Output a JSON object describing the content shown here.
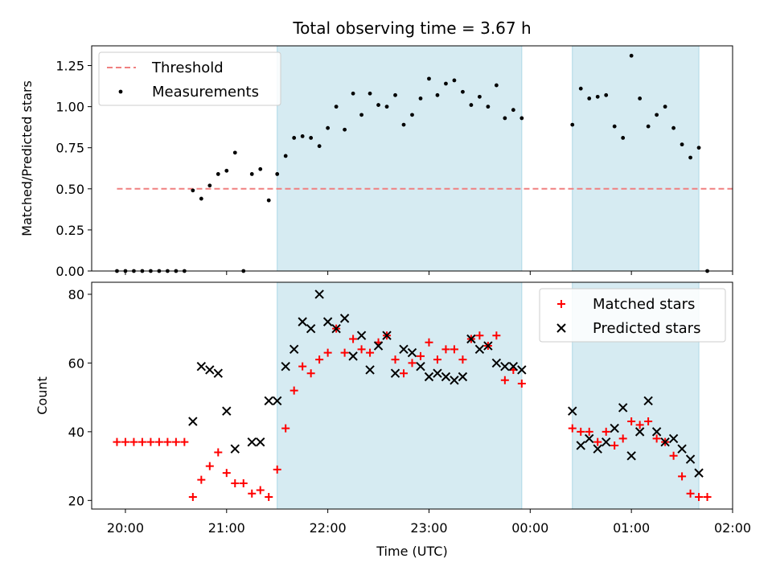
{
  "chart_data": [
    {
      "type": "scatter",
      "title": "Total observing time = 3.67 h",
      "xlabel": "",
      "ylabel": "Matched/Predicted stars",
      "xlim": [
        "19:40",
        "02:00"
      ],
      "ylim": [
        0,
        1.37
      ],
      "y_ticks": [
        "0.00",
        "0.25",
        "0.50",
        "0.75",
        "1.00",
        "1.25"
      ],
      "shaded_intervals": [
        [
          "21:30",
          "23:55"
        ],
        [
          "00:25",
          "01:40"
        ]
      ],
      "threshold": {
        "name": "Threshold",
        "y": 0.5,
        "x_range": [
          "19:55",
          "02:00"
        ],
        "color": "#f08080"
      },
      "legend": {
        "position": "top-left",
        "entries": [
          "Threshold",
          "Measurements"
        ]
      },
      "series": [
        {
          "name": "Measurements",
          "color": "#000000",
          "marker": "dot",
          "points": [
            [
              "19:55",
              0.0
            ],
            [
              "20:00",
              0.0
            ],
            [
              "20:05",
              0.0
            ],
            [
              "20:10",
              0.0
            ],
            [
              "20:15",
              0.0
            ],
            [
              "20:20",
              0.0
            ],
            [
              "20:25",
              0.0
            ],
            [
              "20:30",
              0.0
            ],
            [
              "20:35",
              0.0
            ],
            [
              "20:40",
              0.49
            ],
            [
              "20:45",
              0.44
            ],
            [
              "20:50",
              0.52
            ],
            [
              "20:55",
              0.59
            ],
            [
              "21:00",
              0.61
            ],
            [
              "21:05",
              0.72
            ],
            [
              "21:10",
              0.0
            ],
            [
              "21:15",
              0.59
            ],
            [
              "21:20",
              0.62
            ],
            [
              "21:25",
              0.43
            ],
            [
              "21:30",
              0.59
            ],
            [
              "21:35",
              0.7
            ],
            [
              "21:40",
              0.81
            ],
            [
              "21:45",
              0.82
            ],
            [
              "21:50",
              0.81
            ],
            [
              "21:55",
              0.76
            ],
            [
              "22:00",
              0.87
            ],
            [
              "22:05",
              1.0
            ],
            [
              "22:10",
              0.86
            ],
            [
              "22:15",
              1.08
            ],
            [
              "22:20",
              0.95
            ],
            [
              "22:25",
              1.08
            ],
            [
              "22:30",
              1.01
            ],
            [
              "22:35",
              1.0
            ],
            [
              "22:40",
              1.07
            ],
            [
              "22:45",
              0.89
            ],
            [
              "22:50",
              0.95
            ],
            [
              "22:55",
              1.05
            ],
            [
              "23:00",
              1.17
            ],
            [
              "23:05",
              1.07
            ],
            [
              "23:10",
              1.14
            ],
            [
              "23:15",
              1.16
            ],
            [
              "23:20",
              1.09
            ],
            [
              "23:25",
              1.01
            ],
            [
              "23:30",
              1.06
            ],
            [
              "23:35",
              1.0
            ],
            [
              "23:40",
              1.13
            ],
            [
              "23:45",
              0.93
            ],
            [
              "23:50",
              0.98
            ],
            [
              "23:55",
              0.93
            ],
            [
              "00:25",
              0.89
            ],
            [
              "00:30",
              1.11
            ],
            [
              "00:35",
              1.05
            ],
            [
              "00:40",
              1.06
            ],
            [
              "00:45",
              1.07
            ],
            [
              "00:50",
              0.88
            ],
            [
              "00:55",
              0.81
            ],
            [
              "01:00",
              1.31
            ],
            [
              "01:05",
              1.05
            ],
            [
              "01:10",
              0.88
            ],
            [
              "01:15",
              0.95
            ],
            [
              "01:20",
              1.0
            ],
            [
              "01:25",
              0.87
            ],
            [
              "01:30",
              0.77
            ],
            [
              "01:35",
              0.69
            ],
            [
              "01:40",
              0.75
            ],
            [
              "01:45",
              0.0
            ]
          ]
        }
      ]
    },
    {
      "type": "scatter",
      "title": "",
      "xlabel": "Time (UTC)",
      "ylabel": "Count",
      "xlim": [
        "19:40",
        "02:00"
      ],
      "ylim": [
        17.5,
        83.5
      ],
      "y_ticks": [
        "20",
        "40",
        "60",
        "80"
      ],
      "x_ticks": [
        "20:00",
        "21:00",
        "22:00",
        "23:00",
        "00:00",
        "01:00",
        "02:00"
      ],
      "shaded_intervals": [
        [
          "21:30",
          "23:55"
        ],
        [
          "00:25",
          "01:40"
        ]
      ],
      "legend": {
        "position": "top-right",
        "entries": [
          "Matched stars",
          "Predicted stars"
        ]
      },
      "series": [
        {
          "name": "Matched stars",
          "color": "#ff0000",
          "marker": "plus",
          "points": [
            [
              "19:55",
              37
            ],
            [
              "20:00",
              37
            ],
            [
              "20:05",
              37
            ],
            [
              "20:10",
              37
            ],
            [
              "20:15",
              37
            ],
            [
              "20:20",
              37
            ],
            [
              "20:25",
              37
            ],
            [
              "20:30",
              37
            ],
            [
              "20:35",
              37
            ],
            [
              "20:40",
              21
            ],
            [
              "20:45",
              26
            ],
            [
              "20:50",
              30
            ],
            [
              "20:55",
              34
            ],
            [
              "21:00",
              28
            ],
            [
              "21:05",
              25
            ],
            [
              "21:10",
              25
            ],
            [
              "21:15",
              22
            ],
            [
              "21:20",
              23
            ],
            [
              "21:25",
              21
            ],
            [
              "21:30",
              29
            ],
            [
              "21:35",
              41
            ],
            [
              "21:40",
              52
            ],
            [
              "21:45",
              59
            ],
            [
              "21:50",
              57
            ],
            [
              "21:55",
              61
            ],
            [
              "22:00",
              63
            ],
            [
              "22:05",
              70
            ],
            [
              "22:10",
              63
            ],
            [
              "22:15",
              67
            ],
            [
              "22:20",
              64
            ],
            [
              "22:25",
              63
            ],
            [
              "22:30",
              66
            ],
            [
              "22:35",
              68
            ],
            [
              "22:40",
              61
            ],
            [
              "22:45",
              57
            ],
            [
              "22:50",
              60
            ],
            [
              "22:55",
              62
            ],
            [
              "23:00",
              66
            ],
            [
              "23:05",
              61
            ],
            [
              "23:10",
              64
            ],
            [
              "23:15",
              64
            ],
            [
              "23:20",
              61
            ],
            [
              "23:25",
              67
            ],
            [
              "23:30",
              68
            ],
            [
              "23:35",
              65
            ],
            [
              "23:40",
              68
            ],
            [
              "23:45",
              55
            ],
            [
              "23:50",
              58
            ],
            [
              "23:55",
              54
            ],
            [
              "00:25",
              41
            ],
            [
              "00:30",
              40
            ],
            [
              "00:35",
              40
            ],
            [
              "00:40",
              37
            ],
            [
              "00:45",
              40
            ],
            [
              "00:50",
              36
            ],
            [
              "00:55",
              38
            ],
            [
              "01:00",
              43
            ],
            [
              "01:05",
              42
            ],
            [
              "01:10",
              43
            ],
            [
              "01:15",
              38
            ],
            [
              "01:20",
              37
            ],
            [
              "01:25",
              33
            ],
            [
              "01:30",
              27
            ],
            [
              "01:35",
              22
            ],
            [
              "01:40",
              21
            ],
            [
              "01:45",
              21
            ]
          ]
        },
        {
          "name": "Predicted stars",
          "color": "#000000",
          "marker": "x",
          "points": [
            [
              "20:40",
              43
            ],
            [
              "20:45",
              59
            ],
            [
              "20:50",
              58
            ],
            [
              "20:55",
              57
            ],
            [
              "21:00",
              46
            ],
            [
              "21:05",
              35
            ],
            [
              "21:15",
              37
            ],
            [
              "21:20",
              37
            ],
            [
              "21:25",
              49
            ],
            [
              "21:30",
              49
            ],
            [
              "21:35",
              59
            ],
            [
              "21:40",
              64
            ],
            [
              "21:45",
              72
            ],
            [
              "21:50",
              70
            ],
            [
              "21:55",
              80
            ],
            [
              "22:00",
              72
            ],
            [
              "22:05",
              70
            ],
            [
              "22:10",
              73
            ],
            [
              "22:15",
              62
            ],
            [
              "22:20",
              68
            ],
            [
              "22:25",
              58
            ],
            [
              "22:30",
              65
            ],
            [
              "22:35",
              68
            ],
            [
              "22:40",
              57
            ],
            [
              "22:45",
              64
            ],
            [
              "22:50",
              63
            ],
            [
              "22:55",
              59
            ],
            [
              "23:00",
              56
            ],
            [
              "23:05",
              57
            ],
            [
              "23:10",
              56
            ],
            [
              "23:15",
              55
            ],
            [
              "23:20",
              56
            ],
            [
              "23:25",
              67
            ],
            [
              "23:30",
              64
            ],
            [
              "23:35",
              65
            ],
            [
              "23:40",
              60
            ],
            [
              "23:45",
              59
            ],
            [
              "23:50",
              59
            ],
            [
              "23:55",
              58
            ],
            [
              "00:25",
              46
            ],
            [
              "00:30",
              36
            ],
            [
              "00:35",
              38
            ],
            [
              "00:40",
              35
            ],
            [
              "00:45",
              37
            ],
            [
              "00:50",
              41
            ],
            [
              "00:55",
              47
            ],
            [
              "01:00",
              33
            ],
            [
              "01:05",
              40
            ],
            [
              "01:10",
              49
            ],
            [
              "01:15",
              40
            ],
            [
              "01:20",
              37
            ],
            [
              "01:25",
              38
            ],
            [
              "01:30",
              35
            ],
            [
              "01:35",
              32
            ],
            [
              "01:40",
              28
            ]
          ]
        }
      ]
    }
  ]
}
